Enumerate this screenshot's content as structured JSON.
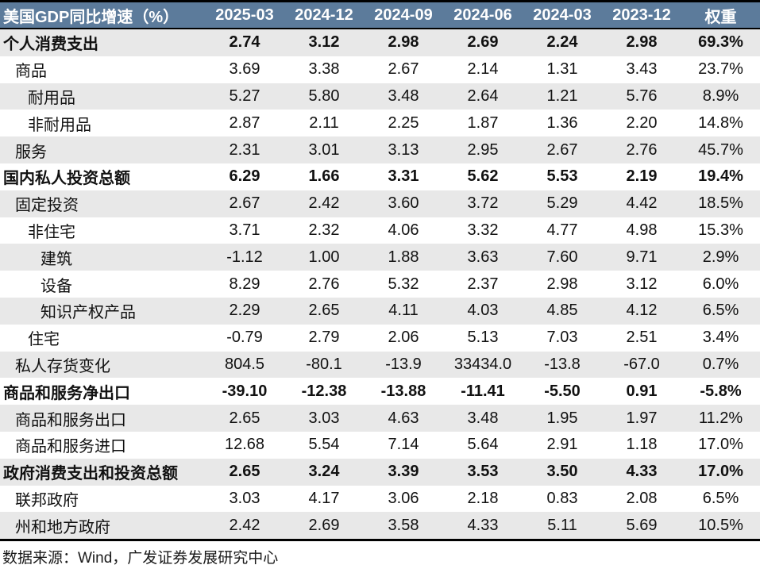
{
  "colors": {
    "header_bg": "#5C7B9B",
    "header_text": "#FFFFFF",
    "row_alt_bg": "#E8E8E8",
    "row_bg": "#FFFFFF",
    "border": "#000000",
    "text": "#111111"
  },
  "table": {
    "columns": [
      "美国GDP同比增速（%）",
      "2025-03",
      "2024-12",
      "2024-09",
      "2024-06",
      "2024-03",
      "2023-12",
      "权重"
    ],
    "rows": [
      {
        "label": "个人消费支出",
        "indent": 0,
        "bold": true,
        "values": [
          "2.74",
          "3.12",
          "2.98",
          "2.69",
          "2.24",
          "2.98",
          "69.3%"
        ]
      },
      {
        "label": "商品",
        "indent": 1,
        "bold": false,
        "values": [
          "3.69",
          "3.38",
          "2.67",
          "2.14",
          "1.31",
          "3.43",
          "23.7%"
        ]
      },
      {
        "label": "耐用品",
        "indent": 2,
        "bold": false,
        "values": [
          "5.27",
          "5.80",
          "3.48",
          "2.64",
          "1.21",
          "5.76",
          "8.9%"
        ]
      },
      {
        "label": "非耐用品",
        "indent": 2,
        "bold": false,
        "values": [
          "2.87",
          "2.11",
          "2.25",
          "1.87",
          "1.36",
          "2.20",
          "14.8%"
        ]
      },
      {
        "label": "服务",
        "indent": 1,
        "bold": false,
        "values": [
          "2.31",
          "3.01",
          "3.13",
          "2.95",
          "2.67",
          "2.76",
          "45.7%"
        ]
      },
      {
        "label": "国内私人投资总额",
        "indent": 0,
        "bold": true,
        "values": [
          "6.29",
          "1.66",
          "3.31",
          "5.62",
          "5.53",
          "2.19",
          "19.4%"
        ]
      },
      {
        "label": "固定投资",
        "indent": 1,
        "bold": false,
        "values": [
          "2.67",
          "2.42",
          "3.60",
          "3.72",
          "5.29",
          "4.42",
          "18.5%"
        ]
      },
      {
        "label": "非住宅",
        "indent": 2,
        "bold": false,
        "values": [
          "3.71",
          "2.32",
          "4.06",
          "3.32",
          "4.77",
          "4.98",
          "15.3%"
        ]
      },
      {
        "label": "建筑",
        "indent": 3,
        "bold": false,
        "values": [
          "-1.12",
          "1.00",
          "1.88",
          "3.63",
          "7.60",
          "9.71",
          "2.9%"
        ]
      },
      {
        "label": "设备",
        "indent": 3,
        "bold": false,
        "values": [
          "8.29",
          "2.76",
          "5.32",
          "2.37",
          "2.98",
          "3.12",
          "6.0%"
        ]
      },
      {
        "label": "知识产权产品",
        "indent": 3,
        "bold": false,
        "values": [
          "2.29",
          "2.65",
          "4.11",
          "4.03",
          "4.85",
          "4.12",
          "6.5%"
        ]
      },
      {
        "label": "住宅",
        "indent": 2,
        "bold": false,
        "values": [
          "-0.79",
          "2.79",
          "2.06",
          "5.13",
          "7.03",
          "2.51",
          "3.4%"
        ]
      },
      {
        "label": "私人存货变化",
        "indent": 1,
        "bold": false,
        "values": [
          "804.5",
          "-80.1",
          "-13.9",
          "33434.0",
          "-13.8",
          "-67.0",
          "0.7%"
        ]
      },
      {
        "label": "商品和服务净出口",
        "indent": 0,
        "bold": true,
        "values": [
          "-39.10",
          "-12.38",
          "-13.88",
          "-11.41",
          "-5.50",
          "0.91",
          "-5.8%"
        ]
      },
      {
        "label": "商品和服务出口",
        "indent": 1,
        "bold": false,
        "values": [
          "2.65",
          "3.03",
          "4.63",
          "3.48",
          "1.95",
          "1.97",
          "11.2%"
        ]
      },
      {
        "label": "商品和服务进口",
        "indent": 1,
        "bold": false,
        "values": [
          "12.68",
          "5.54",
          "7.14",
          "5.64",
          "2.91",
          "1.18",
          "17.0%"
        ]
      },
      {
        "label": "政府消费支出和投资总额",
        "indent": 0,
        "bold": true,
        "values": [
          "2.65",
          "3.24",
          "3.39",
          "3.53",
          "3.50",
          "4.33",
          "17.0%"
        ]
      },
      {
        "label": "联邦政府",
        "indent": 1,
        "bold": false,
        "values": [
          "3.03",
          "4.17",
          "3.06",
          "2.18",
          "0.83",
          "2.08",
          "6.5%"
        ]
      },
      {
        "label": "州和地方政府",
        "indent": 1,
        "bold": false,
        "values": [
          "2.42",
          "2.69",
          "3.58",
          "4.33",
          "5.11",
          "5.69",
          "10.5%"
        ]
      }
    ]
  },
  "footer": {
    "source": "数据来源：Wind，广发证券发展研究中心"
  }
}
